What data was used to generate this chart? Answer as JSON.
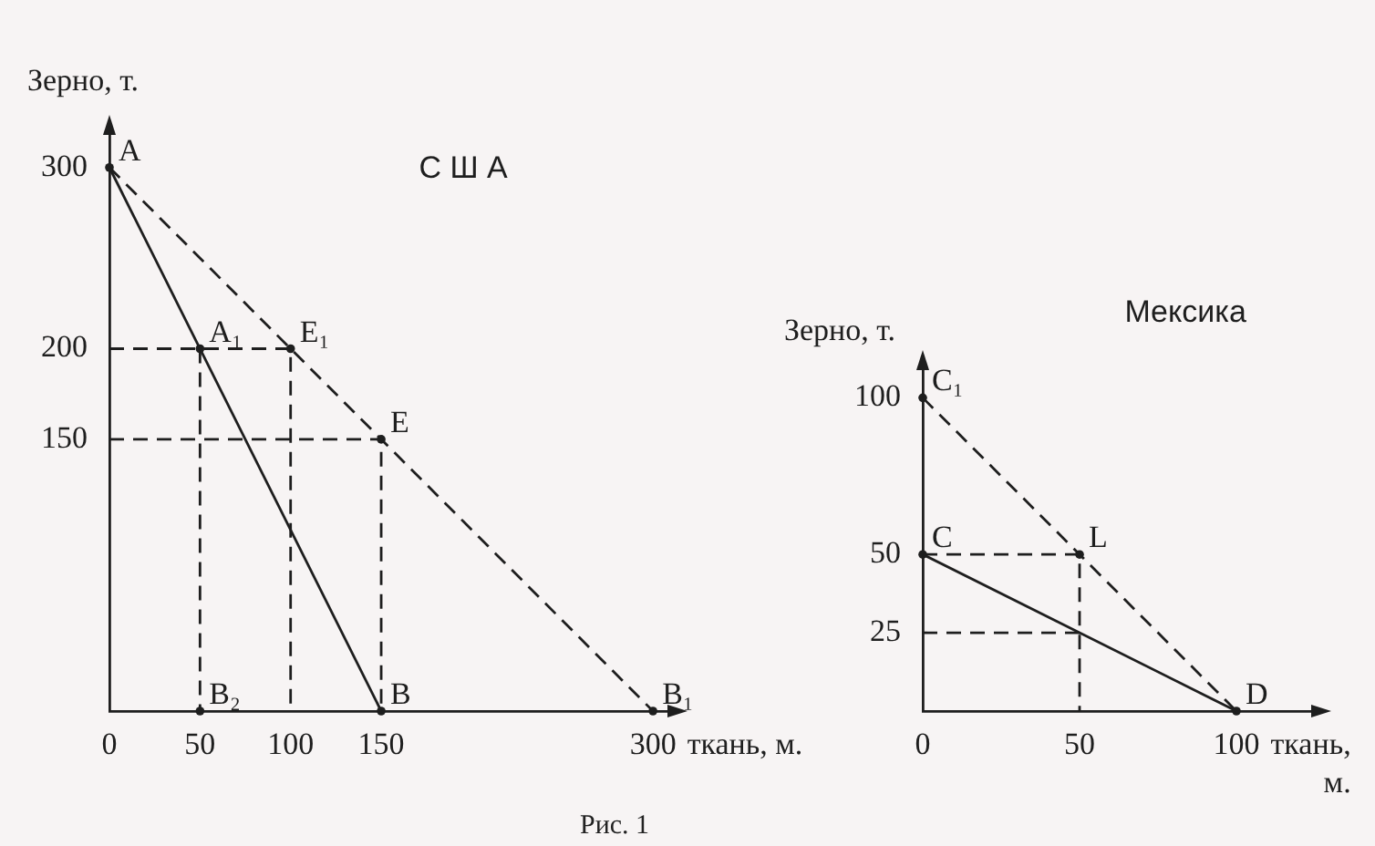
{
  "chart_data": [
    {
      "type": "line",
      "title": "С Ш А",
      "xlabel": "ткань, м.",
      "ylabel": "Зерно, т.",
      "xlim": [
        0,
        310
      ],
      "ylim": [
        0,
        320
      ],
      "xticks": [
        0,
        50,
        100,
        150,
        300
      ],
      "yticks": [
        150,
        200,
        300
      ],
      "series": [
        {
          "type": "line",
          "x": [
            0,
            150
          ],
          "values": [
            300,
            0
          ],
          "color": "#1e1e1e",
          "line_style": "solid"
        },
        {
          "type": "line",
          "x": [
            0,
            300
          ],
          "values": [
            300,
            0
          ],
          "color": "#1e1e1e",
          "line_style": "dashed"
        },
        {
          "type": "line",
          "x": [
            0,
            100,
            100
          ],
          "values": [
            200,
            200,
            0
          ],
          "color": "#1e1e1e",
          "line_style": "dashed"
        },
        {
          "type": "line",
          "x": [
            50,
            50
          ],
          "values": [
            200,
            0
          ],
          "color": "#1e1e1e",
          "line_style": "dashed"
        },
        {
          "type": "line",
          "x": [
            0,
            150,
            150
          ],
          "values": [
            150,
            150,
            0
          ],
          "color": "#1e1e1e",
          "line_style": "dashed"
        },
        {
          "type": "scatter",
          "x": [
            0,
            50,
            100,
            150,
            50,
            150,
            300
          ],
          "values": [
            300,
            200,
            200,
            150,
            0,
            0,
            0
          ],
          "color": "#1e1e1e",
          "marker": "circle"
        }
      ],
      "annotations": [
        {
          "text": "A",
          "x": 0,
          "y": 300
        },
        {
          "text": "A₁",
          "x": 50,
          "y": 200
        },
        {
          "text": "E₁",
          "x": 100,
          "y": 200
        },
        {
          "text": "E",
          "x": 150,
          "y": 150
        },
        {
          "text": "B₂",
          "x": 50,
          "y": 0
        },
        {
          "text": "B",
          "x": 150,
          "y": 0
        },
        {
          "text": "B₁",
          "x": 300,
          "y": 0
        },
        "Рис. 1"
      ]
    },
    {
      "type": "line",
      "title": "Мексика",
      "xlabel": "ткань, м.",
      "ylabel": "Зерно, т.",
      "xlim": [
        0,
        125
      ],
      "ylim": [
        0,
        110
      ],
      "xticks": [
        0,
        50,
        100
      ],
      "yticks": [
        25,
        50,
        100
      ],
      "series": [
        {
          "type": "line",
          "x": [
            0,
            100
          ],
          "values": [
            50,
            0
          ],
          "color": "#1e1e1e",
          "line_style": "solid"
        },
        {
          "type": "line",
          "x": [
            0,
            100
          ],
          "values": [
            100,
            0
          ],
          "color": "#1e1e1e",
          "line_style": "dashed"
        },
        {
          "type": "line",
          "x": [
            0,
            50,
            50
          ],
          "values": [
            50,
            50,
            0
          ],
          "color": "#1e1e1e",
          "line_style": "dashed"
        },
        {
          "type": "line",
          "x": [
            0,
            50
          ],
          "values": [
            25,
            25
          ],
          "color": "#1e1e1e",
          "line_style": "dashed"
        },
        {
          "type": "scatter",
          "x": [
            0,
            0,
            50,
            100
          ],
          "values": [
            100,
            50,
            50,
            0
          ],
          "color": "#1e1e1e",
          "marker": "circle"
        }
      ],
      "annotations": [
        {
          "text": "C₁",
          "x": 0,
          "y": 100
        },
        {
          "text": "C",
          "x": 0,
          "y": 50
        },
        {
          "text": "L",
          "x": 50,
          "y": 50
        },
        {
          "text": "D",
          "x": 100,
          "y": 0
        }
      ]
    }
  ]
}
